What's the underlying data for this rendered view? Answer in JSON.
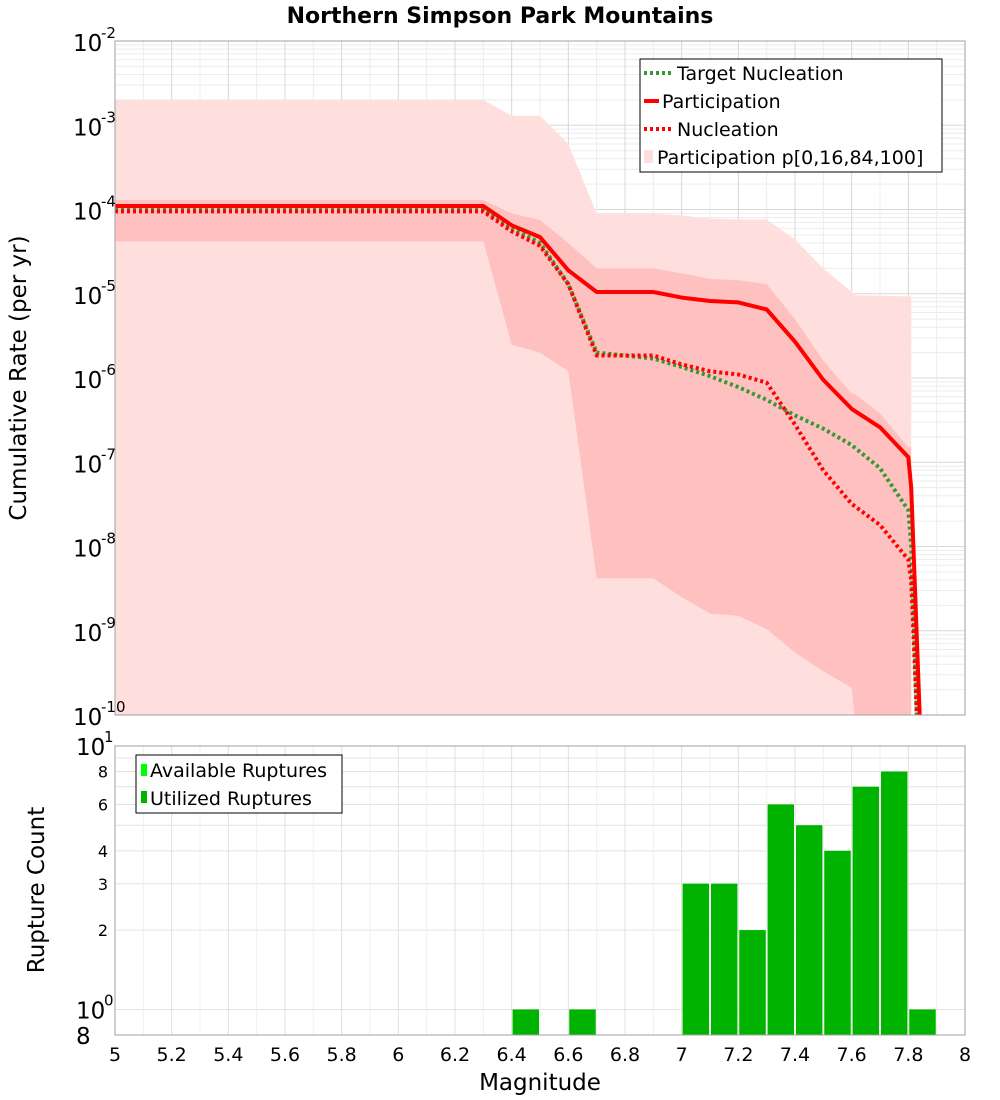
{
  "title": "Northern Simpson Park Mountains",
  "colors": {
    "target": "#339933",
    "participation": "#ff0000",
    "nucleation": "#ff0000",
    "band_outer": "#ffdede",
    "band_inner": "#ffc0c0",
    "available": "#00ff00",
    "utilized": "#00b300"
  },
  "chart_data": [
    {
      "type": "line",
      "title": "Northern Simpson Park Mountains",
      "xlabel": "",
      "ylabel": "Cumulative Rate (per yr)",
      "xlim": [
        5,
        8
      ],
      "ylim": [
        1e-10,
        0.01
      ],
      "yscale": "log",
      "grid": true,
      "legend_position": "top-right",
      "y_ticks": [
        {
          "base": "10",
          "exp": "-2",
          "value": 0.01
        },
        {
          "base": "10",
          "exp": "-3",
          "value": 0.001
        },
        {
          "base": "10",
          "exp": "-4",
          "value": 0.0001
        },
        {
          "base": "10",
          "exp": "-5",
          "value": 1e-05
        },
        {
          "base": "10",
          "exp": "-6",
          "value": 1e-06
        },
        {
          "base": "10",
          "exp": "-7",
          "value": 1e-07
        },
        {
          "base": "10",
          "exp": "-8",
          "value": 1e-08
        },
        {
          "base": "10",
          "exp": "-9",
          "value": 1e-09
        },
        {
          "base": "10",
          "exp": "-10",
          "value": 1e-10
        }
      ],
      "series": [
        {
          "name": "Target Nucleation",
          "style": "dotted",
          "x": [
            5.0,
            5.5,
            6.0,
            6.3,
            6.4,
            6.5,
            6.6,
            6.7,
            6.8,
            6.9,
            7.0,
            7.1,
            7.2,
            7.3,
            7.4,
            7.5,
            7.6,
            7.7,
            7.8,
            7.81,
            7.83
          ],
          "y": [
            0.0001,
            0.0001,
            0.0001,
            0.0001,
            6e-05,
            4e-05,
            1.3e-05,
            2e-06,
            1.85e-06,
            1.7e-06,
            1.35e-06,
            1.05e-06,
            7.8e-07,
            5.5e-07,
            3.6e-07,
            2.5e-07,
            1.6e-07,
            8.5e-08,
            2.7e-08,
            1e-08,
            1e-10
          ]
        },
        {
          "name": "Participation",
          "style": "solid",
          "x": [
            5.0,
            5.5,
            6.0,
            6.3,
            6.4,
            6.5,
            6.6,
            6.7,
            6.8,
            6.9,
            7.0,
            7.1,
            7.2,
            7.3,
            7.4,
            7.5,
            7.6,
            7.7,
            7.8,
            7.81,
            7.84
          ],
          "y": [
            0.00011,
            0.00011,
            0.00011,
            0.00011,
            6.5e-05,
            4.7e-05,
            1.9e-05,
            1.05e-05,
            1.05e-05,
            1.05e-05,
            9e-06,
            8.2e-06,
            7.9e-06,
            6.5e-06,
            2.7e-06,
            9.5e-07,
            4.3e-07,
            2.6e-07,
            1.15e-07,
            5e-08,
            1e-10
          ]
        },
        {
          "name": "Nucleation",
          "style": "dotted",
          "x": [
            5.0,
            5.5,
            6.0,
            6.3,
            6.4,
            6.5,
            6.6,
            6.7,
            6.8,
            6.9,
            7.0,
            7.1,
            7.2,
            7.3,
            7.4,
            7.5,
            7.6,
            7.7,
            7.8,
            7.81,
            7.83
          ],
          "y": [
            9.5e-05,
            9.5e-05,
            9.5e-05,
            9.5e-05,
            5.5e-05,
            3.7e-05,
            1.3e-05,
            1.85e-06,
            1.85e-06,
            1.85e-06,
            1.45e-06,
            1.2e-06,
            1.1e-06,
            8.8e-07,
            2.8e-07,
            8e-08,
            3.2e-08,
            1.8e-08,
            7e-09,
            4e-09,
            1e-10
          ]
        }
      ],
      "bands": [
        {
          "name": "Participation p[0,16,84,100]",
          "kind": "p0-p100",
          "x": [
            5.0,
            5.5,
            6.0,
            6.3,
            6.4,
            6.5,
            6.6,
            6.7,
            6.8,
            6.9,
            7.0,
            7.1,
            7.2,
            7.3,
            7.4,
            7.5,
            7.6,
            7.61,
            7.8,
            7.81
          ],
          "upper": [
            0.002,
            0.002,
            0.002,
            0.002,
            0.0013,
            0.0013,
            0.0006,
            8.9e-05,
            8.9e-05,
            8.9e-05,
            8.5e-05,
            7.8e-05,
            7.6e-05,
            7.6e-05,
            4.4e-05,
            2e-05,
            1.05e-05,
            9.6e-06,
            9.3e-06,
            9.3e-06
          ],
          "lower": [
            1e-10,
            1e-10,
            1e-10,
            1e-10,
            1e-10,
            1e-10,
            1e-10,
            1e-10,
            1e-10,
            1e-10,
            1e-10,
            1e-10,
            1e-10,
            1e-10,
            1e-10,
            1e-10,
            1e-10,
            1e-10,
            1e-10,
            1e-10
          ]
        },
        {
          "name": "Participation p[0,16,84,100]",
          "kind": "p16-p84",
          "x": [
            5.0,
            5.5,
            6.0,
            6.3,
            6.4,
            6.5,
            6.6,
            6.7,
            6.8,
            6.9,
            7.0,
            7.1,
            7.2,
            7.3,
            7.4,
            7.5,
            7.6,
            7.61,
            7.7,
            7.8,
            7.81
          ],
          "upper": [
            0.00013,
            0.00013,
            0.00013,
            0.00013,
            9e-05,
            7.5e-05,
            4e-05,
            2e-05,
            2e-05,
            2e-05,
            1.75e-05,
            1.5e-05,
            1.45e-05,
            1.3e-05,
            5e-06,
            1.6e-06,
            6.5e-07,
            6.5e-07,
            3.8e-07,
            1.5e-07,
            1.5e-07
          ],
          "lower": [
            4.2e-05,
            4.2e-05,
            4.2e-05,
            4.2e-05,
            2.5e-06,
            2e-06,
            1.2e-06,
            4.2e-09,
            4.2e-09,
            4.2e-09,
            2.5e-09,
            1.6e-09,
            1.5e-09,
            1.05e-09,
            5.5e-10,
            3.3e-10,
            2.1e-10,
            1e-10,
            1e-10,
            1e-10,
            1e-10
          ]
        }
      ],
      "legend": [
        "Target Nucleation",
        "Participation",
        "Nucleation",
        "Participation p[0,16,84,100]"
      ]
    },
    {
      "type": "bar",
      "xlabel": "Magnitude",
      "ylabel": "Rupture Count",
      "xlim": [
        5,
        8
      ],
      "ylim": [
        0.8,
        10
      ],
      "yscale": "log",
      "grid": true,
      "legend_position": "top-left",
      "x_ticks": [
        "5",
        "5.2",
        "5.4",
        "5.6",
        "5.8",
        "6",
        "6.2",
        "6.4",
        "6.6",
        "6.8",
        "7",
        "7.2",
        "7.4",
        "7.6",
        "7.8",
        "8"
      ],
      "y_ticks": [
        {
          "label": "8",
          "value": 8
        },
        {
          "label": "6",
          "value": 6
        },
        {
          "label": "4",
          "value": 4
        },
        {
          "label": "3",
          "value": 3
        },
        {
          "label": "2",
          "value": 2
        }
      ],
      "y_ticks_big": [
        {
          "base": "10",
          "exp": "1",
          "value": 10
        },
        {
          "base": "10",
          "exp": "0",
          "value": 1
        },
        {
          "base": "8",
          "exp": "",
          "value": 0.8
        }
      ],
      "bin_width": 0.1,
      "series": [
        {
          "name": "Available Ruptures",
          "x": [
            6.45,
            6.65,
            7.05,
            7.15,
            7.25,
            7.35,
            7.45,
            7.55,
            7.65,
            7.75,
            7.85
          ],
          "values": [
            1,
            1,
            3,
            3,
            2,
            6,
            5,
            4,
            7,
            8,
            1
          ]
        },
        {
          "name": "Utilized Ruptures",
          "x": [
            6.45,
            6.65,
            7.05,
            7.15,
            7.25,
            7.35,
            7.45,
            7.55,
            7.65,
            7.75,
            7.85
          ],
          "values": [
            1,
            1,
            3,
            3,
            2,
            6,
            5,
            4,
            7,
            8,
            1
          ]
        }
      ],
      "legend": [
        "Available Ruptures",
        "Utilized Ruptures"
      ]
    }
  ]
}
